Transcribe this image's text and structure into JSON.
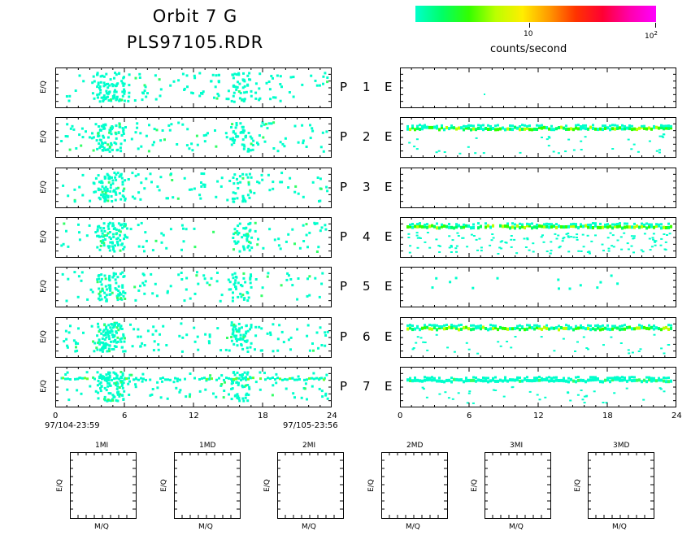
{
  "header": {
    "title_line1": "Orbit 7 G",
    "title_line2": "PLS97105.RDR"
  },
  "colorbar": {
    "label": "counts/second",
    "tick_10": "10",
    "tick_100_base": "10",
    "tick_100_exp": "2",
    "colors": [
      "#00ffcc",
      "#00ff66",
      "#33ff00",
      "#bbff00",
      "#ffee00",
      "#ff9900",
      "#ff3300",
      "#ff0033",
      "#ff00aa",
      "#ff00ff"
    ]
  },
  "panels": {
    "y_label": "E/Q",
    "rows": [
      {
        "p": "P",
        "num": "1",
        "e": "E"
      },
      {
        "p": "P",
        "num": "2",
        "e": "E"
      },
      {
        "p": "P",
        "num": "3",
        "e": "E"
      },
      {
        "p": "P",
        "num": "4",
        "e": "E"
      },
      {
        "p": "P",
        "num": "5",
        "e": "E"
      },
      {
        "p": "P",
        "num": "6",
        "e": "E"
      },
      {
        "p": "P",
        "num": "7",
        "e": "E"
      }
    ],
    "x_ticks": [
      "0",
      "6",
      "12",
      "18",
      "24"
    ],
    "start_time": "97/104-23:59",
    "end_time": "97/105-23:56"
  },
  "mass_panels": {
    "y_label": "E/Q",
    "x_label": "M/Q",
    "titles": [
      "1MI",
      "1MD",
      "2MI",
      "2MD",
      "3MI",
      "3MD"
    ]
  },
  "chart_data": {
    "type": "heatmap",
    "x_range_hours": [
      0,
      24
    ],
    "x_ticks": [
      0,
      6,
      12,
      18,
      24
    ],
    "colorbar_scale": "log",
    "colorbar_range": [
      1,
      100
    ],
    "colorbar_label": "counts/second",
    "left_column": "P channels 1-7 (E/Q vs time), sparse low counts",
    "right_column": "E channels 1-7 (E/Q vs time)",
    "right_band_channels": [
      "2",
      "4",
      "6",
      "7"
    ],
    "mass_spectra": [
      "1MI",
      "1MD",
      "2MI",
      "2MD",
      "3MI",
      "3MD"
    ]
  }
}
